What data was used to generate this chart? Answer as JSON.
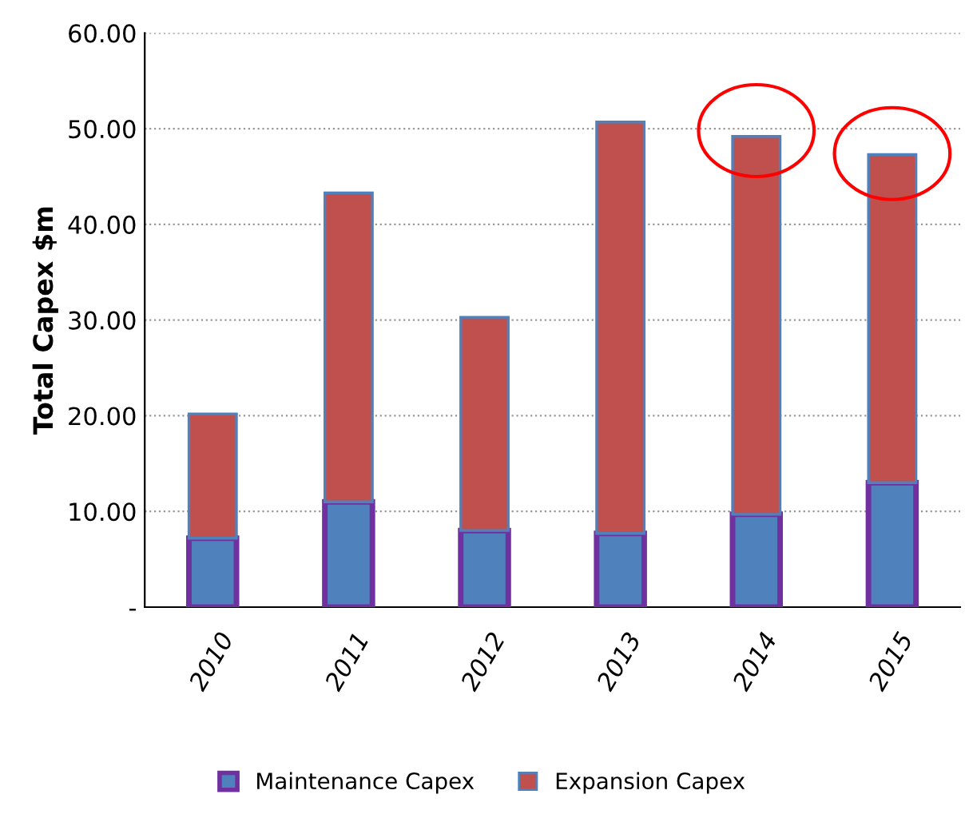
{
  "chart_data": {
    "type": "bar",
    "stacked": true,
    "ylabel": "Total Capex $m",
    "categories": [
      "2010",
      "2011",
      "2012",
      "2013",
      "2014",
      "2015"
    ],
    "series": [
      {
        "name": "Maintenance Capex",
        "color": "#4f81bd",
        "values": [
          7.2,
          11.0,
          8.0,
          7.7,
          9.7,
          13.0
        ]
      },
      {
        "name": "Expansion Capex",
        "color": "#c0504d",
        "values": [
          13.0,
          32.3,
          22.3,
          43.0,
          39.5,
          34.3
        ]
      }
    ],
    "ylim": [
      0,
      60
    ],
    "yticks": [
      {
        "value": 0,
        "label": "-"
      },
      {
        "value": 10,
        "label": "10.00"
      },
      {
        "value": 20,
        "label": "20.00"
      },
      {
        "value": 30,
        "label": "30.00"
      },
      {
        "value": 40,
        "label": "40.00"
      },
      {
        "value": 50,
        "label": "50.00"
      },
      {
        "value": 60,
        "label": "60.00"
      }
    ],
    "grid": "y",
    "legend": "bottom"
  }
}
